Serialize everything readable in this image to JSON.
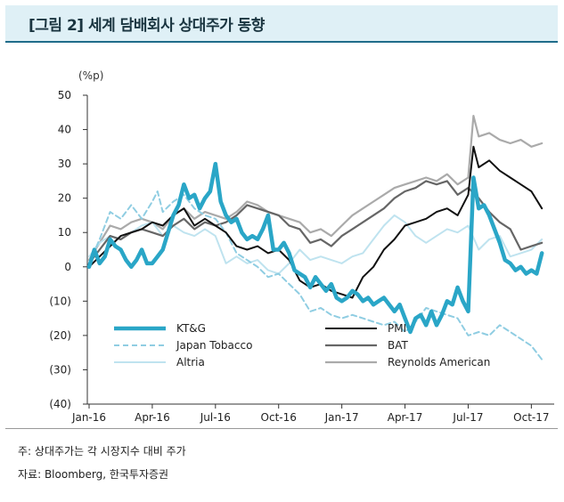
{
  "title": "[그림 2] 세계 담배회사 상대주가 동향",
  "unit_label": "(%p)",
  "note": "주: 상대주가는 각 시장지수 대비 주가",
  "source": "자료: Bloomberg, 한국투자증권",
  "chart_data": {
    "type": "line",
    "title": "",
    "xlabel": "",
    "ylabel": "(%p)",
    "ylim": [
      -40,
      50
    ],
    "y_ticks": [
      50,
      40,
      30,
      20,
      10,
      0,
      -10,
      -20,
      -30,
      -40
    ],
    "y_tick_labels": [
      "50",
      "40",
      "30",
      "20",
      "10",
      "0",
      "(10)",
      "(20)",
      "(30)",
      "(40)"
    ],
    "x_tick_labels": [
      "Jan-16",
      "Apr-16",
      "Jul-16",
      "Oct-16",
      "Jan-17",
      "Apr-17",
      "Jul-17",
      "Oct-17"
    ],
    "x_ticks": [
      0,
      3,
      6,
      9,
      12,
      15,
      18,
      21
    ],
    "xlim": [
      0,
      22
    ],
    "grid": false,
    "legend_position": "bottom-left inside plot, two columns",
    "series": [
      {
        "name": "KT&G",
        "color": "#2aa6c7",
        "width": 4.5,
        "dash": "",
        "points": [
          [
            0,
            0
          ],
          [
            0.25,
            5
          ],
          [
            0.5,
            1
          ],
          [
            0.75,
            3
          ],
          [
            1,
            8
          ],
          [
            1.25,
            6
          ],
          [
            1.5,
            5
          ],
          [
            1.75,
            2
          ],
          [
            2,
            0
          ],
          [
            2.25,
            2
          ],
          [
            2.5,
            5
          ],
          [
            2.75,
            1
          ],
          [
            3,
            1
          ],
          [
            3.25,
            3
          ],
          [
            3.5,
            5
          ],
          [
            3.75,
            10
          ],
          [
            4,
            15
          ],
          [
            4.25,
            18
          ],
          [
            4.5,
            24
          ],
          [
            4.75,
            20
          ],
          [
            5,
            21
          ],
          [
            5.25,
            17
          ],
          [
            5.5,
            20
          ],
          [
            5.75,
            22
          ],
          [
            6,
            30
          ],
          [
            6.25,
            19
          ],
          [
            6.5,
            15
          ],
          [
            6.75,
            13
          ],
          [
            7,
            14
          ],
          [
            7.25,
            10
          ],
          [
            7.5,
            8
          ],
          [
            7.75,
            9
          ],
          [
            8,
            8
          ],
          [
            8.25,
            11
          ],
          [
            8.5,
            15
          ],
          [
            8.75,
            5
          ],
          [
            9,
            5
          ],
          [
            9.25,
            7
          ],
          [
            9.5,
            4
          ],
          [
            9.75,
            -1
          ],
          [
            10,
            -2
          ],
          [
            10.25,
            -3
          ],
          [
            10.5,
            -6
          ],
          [
            10.75,
            -3
          ],
          [
            11,
            -5
          ],
          [
            11.25,
            -7
          ],
          [
            11.5,
            -5
          ],
          [
            11.75,
            -9
          ],
          [
            12,
            -10
          ],
          [
            12.25,
            -9
          ],
          [
            12.5,
            -7
          ],
          [
            12.75,
            -8
          ],
          [
            13,
            -10
          ],
          [
            13.25,
            -9
          ],
          [
            13.5,
            -11
          ],
          [
            13.75,
            -10
          ],
          [
            14,
            -9
          ],
          [
            14.25,
            -11
          ],
          [
            14.5,
            -13
          ],
          [
            14.75,
            -11
          ],
          [
            15,
            -15
          ],
          [
            15.25,
            -19
          ],
          [
            15.5,
            -15
          ],
          [
            15.75,
            -14
          ],
          [
            16,
            -17
          ],
          [
            16.25,
            -13
          ],
          [
            16.5,
            -17
          ],
          [
            16.75,
            -14
          ],
          [
            17,
            -10
          ],
          [
            17.25,
            -11
          ],
          [
            17.5,
            -6
          ],
          [
            17.75,
            -10
          ],
          [
            18,
            -13
          ],
          [
            18.25,
            26
          ],
          [
            18.5,
            17
          ],
          [
            18.75,
            18
          ],
          [
            19,
            15
          ],
          [
            19.25,
            11
          ],
          [
            19.5,
            7
          ],
          [
            19.75,
            2
          ],
          [
            20,
            1
          ],
          [
            20.25,
            -1
          ],
          [
            20.5,
            0
          ],
          [
            20.75,
            -2
          ],
          [
            21,
            -1
          ],
          [
            21.25,
            -2
          ],
          [
            21.5,
            4
          ]
        ]
      },
      {
        "name": "Japan Tobacco",
        "color": "#8fcde2",
        "width": 2,
        "dash": "6,4",
        "points": [
          [
            0,
            1
          ],
          [
            0.5,
            8
          ],
          [
            1,
            16
          ],
          [
            1.5,
            14
          ],
          [
            2,
            18
          ],
          [
            2.5,
            14
          ],
          [
            3,
            19
          ],
          [
            3.25,
            22
          ],
          [
            3.5,
            16
          ],
          [
            4,
            19
          ],
          [
            4.5,
            21
          ],
          [
            5,
            17
          ],
          [
            5.5,
            15
          ],
          [
            6,
            14
          ],
          [
            6.5,
            10
          ],
          [
            7,
            4
          ],
          [
            7.5,
            2
          ],
          [
            8,
            0
          ],
          [
            8.5,
            -3
          ],
          [
            9,
            -2
          ],
          [
            9.5,
            -5
          ],
          [
            10,
            -8
          ],
          [
            10.5,
            -13
          ],
          [
            11,
            -12
          ],
          [
            11.5,
            -14
          ],
          [
            12,
            -15
          ],
          [
            12.5,
            -14
          ],
          [
            13,
            -15
          ],
          [
            13.5,
            -16
          ],
          [
            14,
            -17
          ],
          [
            14.5,
            -16
          ],
          [
            15,
            -19
          ],
          [
            15.5,
            -16
          ],
          [
            16,
            -12
          ],
          [
            16.5,
            -13
          ],
          [
            17,
            -14
          ],
          [
            17.5,
            -15
          ],
          [
            18,
            -20
          ],
          [
            18.5,
            -19
          ],
          [
            19,
            -20
          ],
          [
            19.5,
            -17
          ],
          [
            20,
            -19
          ],
          [
            20.5,
            -21
          ],
          [
            21,
            -23
          ],
          [
            21.5,
            -27
          ]
        ]
      },
      {
        "name": "Altria",
        "color": "#bfe3ef",
        "width": 2,
        "dash": "",
        "points": [
          [
            0,
            3
          ],
          [
            0.5,
            7
          ],
          [
            1,
            9
          ],
          [
            1.5,
            8
          ],
          [
            2,
            10
          ],
          [
            2.5,
            12
          ],
          [
            3,
            13
          ],
          [
            3.5,
            9
          ],
          [
            4,
            12
          ],
          [
            4.5,
            10
          ],
          [
            5,
            9
          ],
          [
            5.5,
            11
          ],
          [
            6,
            9
          ],
          [
            6.5,
            1
          ],
          [
            7,
            3
          ],
          [
            7.5,
            1
          ],
          [
            8,
            2
          ],
          [
            8.5,
            -1
          ],
          [
            9,
            -2
          ],
          [
            9.5,
            1
          ],
          [
            10,
            5
          ],
          [
            10.5,
            2
          ],
          [
            11,
            3
          ],
          [
            11.5,
            2
          ],
          [
            12,
            1
          ],
          [
            12.5,
            3
          ],
          [
            13,
            4
          ],
          [
            13.5,
            8
          ],
          [
            14,
            12
          ],
          [
            14.5,
            15
          ],
          [
            15,
            13
          ],
          [
            15.5,
            9
          ],
          [
            16,
            7
          ],
          [
            16.5,
            9
          ],
          [
            17,
            11
          ],
          [
            17.5,
            10
          ],
          [
            18,
            12
          ],
          [
            18.5,
            5
          ],
          [
            19,
            8
          ],
          [
            19.5,
            9
          ],
          [
            20,
            3
          ],
          [
            20.5,
            4
          ],
          [
            21,
            5
          ],
          [
            21.5,
            8
          ]
        ]
      },
      {
        "name": "PMI",
        "color": "#111111",
        "width": 2,
        "dash": "",
        "points": [
          [
            0,
            0
          ],
          [
            0.5,
            3
          ],
          [
            1,
            6
          ],
          [
            1.5,
            9
          ],
          [
            2,
            10
          ],
          [
            2.5,
            11
          ],
          [
            3,
            13
          ],
          [
            3.5,
            12
          ],
          [
            4,
            15
          ],
          [
            4.5,
            17
          ],
          [
            5,
            12
          ],
          [
            5.5,
            14
          ],
          [
            6,
            12
          ],
          [
            6.5,
            10
          ],
          [
            7,
            6
          ],
          [
            7.5,
            5
          ],
          [
            8,
            6
          ],
          [
            8.5,
            4
          ],
          [
            9,
            5
          ],
          [
            9.5,
            2
          ],
          [
            10,
            -4
          ],
          [
            10.5,
            -6
          ],
          [
            11,
            -5
          ],
          [
            11.5,
            -7
          ],
          [
            12,
            -8
          ],
          [
            12.5,
            -9
          ],
          [
            13,
            -3
          ],
          [
            13.5,
            0
          ],
          [
            14,
            5
          ],
          [
            14.5,
            8
          ],
          [
            15,
            12
          ],
          [
            15.5,
            13
          ],
          [
            16,
            14
          ],
          [
            16.5,
            16
          ],
          [
            17,
            17
          ],
          [
            17.5,
            15
          ],
          [
            18,
            21
          ],
          [
            18.25,
            35
          ],
          [
            18.5,
            29
          ],
          [
            19,
            31
          ],
          [
            19.5,
            28
          ],
          [
            20,
            26
          ],
          [
            20.5,
            24
          ],
          [
            21,
            22
          ],
          [
            21.5,
            17
          ]
        ]
      },
      {
        "name": "BAT",
        "color": "#666666",
        "width": 2.2,
        "dash": "",
        "points": [
          [
            0,
            1
          ],
          [
            0.5,
            5
          ],
          [
            1,
            9
          ],
          [
            1.5,
            8
          ],
          [
            2,
            10
          ],
          [
            2.5,
            11
          ],
          [
            3,
            10
          ],
          [
            3.5,
            9
          ],
          [
            4,
            12
          ],
          [
            4.5,
            14
          ],
          [
            5,
            11
          ],
          [
            5.5,
            13
          ],
          [
            6,
            12
          ],
          [
            6.5,
            13
          ],
          [
            7,
            15
          ],
          [
            7.5,
            18
          ],
          [
            8,
            17
          ],
          [
            8.5,
            16
          ],
          [
            9,
            15
          ],
          [
            9.5,
            12
          ],
          [
            10,
            11
          ],
          [
            10.5,
            7
          ],
          [
            11,
            8
          ],
          [
            11.5,
            6
          ],
          [
            12,
            9
          ],
          [
            12.5,
            11
          ],
          [
            13,
            13
          ],
          [
            13.5,
            15
          ],
          [
            14,
            17
          ],
          [
            14.5,
            20
          ],
          [
            15,
            22
          ],
          [
            15.5,
            23
          ],
          [
            16,
            25
          ],
          [
            16.5,
            24
          ],
          [
            17,
            25
          ],
          [
            17.5,
            21
          ],
          [
            18,
            23
          ],
          [
            18.5,
            20
          ],
          [
            19,
            16
          ],
          [
            19.5,
            13
          ],
          [
            20,
            11
          ],
          [
            20.5,
            5
          ],
          [
            21,
            6
          ],
          [
            21.5,
            7
          ]
        ]
      },
      {
        "name": "Reynolds American",
        "color": "#aaaaaa",
        "width": 2.2,
        "dash": "",
        "points": [
          [
            0,
            2
          ],
          [
            0.5,
            7
          ],
          [
            1,
            12
          ],
          [
            1.5,
            11
          ],
          [
            2,
            13
          ],
          [
            2.5,
            14
          ],
          [
            3,
            13
          ],
          [
            3.5,
            11
          ],
          [
            4,
            15
          ],
          [
            4.5,
            17
          ],
          [
            5,
            14
          ],
          [
            5.5,
            16
          ],
          [
            6,
            15
          ],
          [
            6.5,
            14
          ],
          [
            7,
            16
          ],
          [
            7.5,
            19
          ],
          [
            8,
            18
          ],
          [
            8.5,
            16
          ],
          [
            9,
            15
          ],
          [
            9.5,
            14
          ],
          [
            10,
            13
          ],
          [
            10.5,
            10
          ],
          [
            11,
            11
          ],
          [
            11.5,
            9
          ],
          [
            12,
            12
          ],
          [
            12.5,
            15
          ],
          [
            13,
            17
          ],
          [
            13.5,
            19
          ],
          [
            14,
            21
          ],
          [
            14.5,
            23
          ],
          [
            15,
            24
          ],
          [
            15.5,
            25
          ],
          [
            16,
            26
          ],
          [
            16.5,
            25
          ],
          [
            17,
            27
          ],
          [
            17.5,
            24
          ],
          [
            18,
            26
          ],
          [
            18.25,
            44
          ],
          [
            18.5,
            38
          ],
          [
            19,
            39
          ],
          [
            19.5,
            37
          ],
          [
            20,
            36
          ],
          [
            20.5,
            37
          ],
          [
            21,
            35
          ],
          [
            21.5,
            36
          ]
        ]
      }
    ]
  }
}
